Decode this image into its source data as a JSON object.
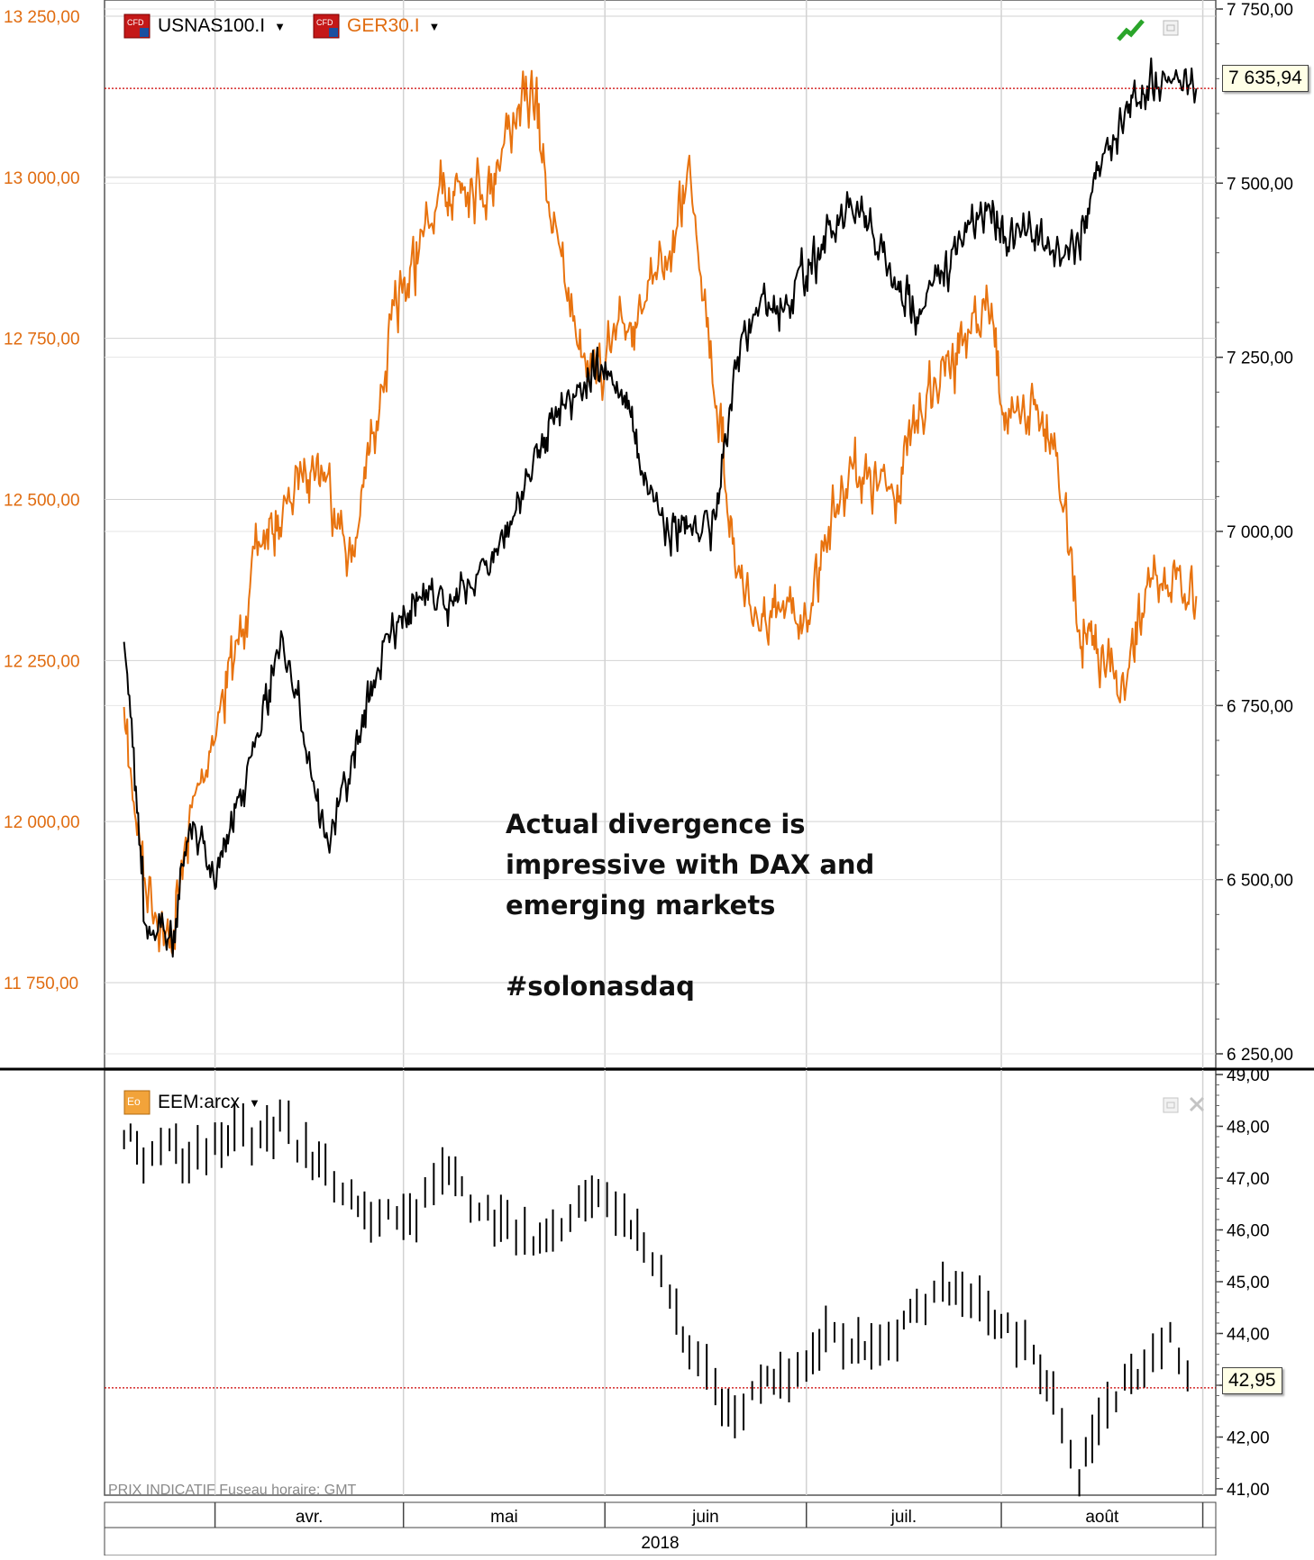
{
  "colors": {
    "left_axis": "#e06c10",
    "dax_line": "#e8730f",
    "nasdaq_line": "#000000",
    "ref_line": "#cc0000",
    "grid": "#d2d2d2"
  },
  "legend": {
    "top": [
      {
        "name": "USNAS100.I",
        "icon": "cfd-icon",
        "color": "#000000"
      },
      {
        "name": "GER30.I",
        "icon": "cfd-icon",
        "color": "#e06c10"
      }
    ],
    "bottom": {
      "name": "EEM:arcx",
      "icon": "etf-icon"
    }
  },
  "annotation": {
    "lines": [
      "Actual divergence is",
      "impressive with DAX and",
      "emerging markets"
    ],
    "hashtag": "#solonasdaq"
  },
  "footer": "PRIX INDICATIF   Fuseau horaire: GMT",
  "year_label": "2018",
  "last_values": {
    "usnas100": "7 635,94",
    "eem": "42,95"
  },
  "chart_data": [
    {
      "type": "line",
      "x_axis": "time",
      "months": [
        "avr.",
        "mai",
        "juin",
        "juil.",
        "août"
      ],
      "year": "2018",
      "left_axis": {
        "name": "GER30.I",
        "ticks": [
          "11 750,00",
          "12 000,00",
          "12 250,00",
          "12 500,00",
          "12 750,00",
          "13 000,00",
          "13 250,00"
        ]
      },
      "right_axis": {
        "name": "USNAS100.I",
        "ticks": [
          "6 250,00",
          "6 500,00",
          "6 750,00",
          "7 000,00",
          "7 250,00",
          "7 500,00",
          "7 750,00"
        ]
      },
      "series": [
        {
          "name": "GER30.I",
          "axis": "left",
          "color": "#e8730f",
          "x": [
            "2018-03-19",
            "2018-03-22",
            "2018-03-26",
            "2018-03-29",
            "2018-04-02",
            "2018-04-05",
            "2018-04-09",
            "2018-04-12",
            "2018-04-16",
            "2018-04-19",
            "2018-04-23",
            "2018-04-26",
            "2018-04-30",
            "2018-05-03",
            "2018-05-07",
            "2018-05-10",
            "2018-05-14",
            "2018-05-17",
            "2018-05-21",
            "2018-05-24",
            "2018-05-28",
            "2018-05-31",
            "2018-06-04",
            "2018-06-07",
            "2018-06-11",
            "2018-06-14",
            "2018-06-18",
            "2018-06-21",
            "2018-06-25",
            "2018-06-28",
            "2018-07-02",
            "2018-07-05",
            "2018-07-09",
            "2018-07-12",
            "2018-07-16",
            "2018-07-19",
            "2018-07-23",
            "2018-07-26",
            "2018-07-30",
            "2018-08-02",
            "2018-08-06",
            "2018-08-09",
            "2018-08-13",
            "2018-08-16",
            "2018-08-20",
            "2018-08-23",
            "2018-08-27",
            "2018-08-31"
          ],
          "values": [
            12150,
            11920,
            11800,
            12000,
            12150,
            12260,
            12440,
            12460,
            12560,
            12540,
            12400,
            12600,
            12800,
            12880,
            12970,
            13000,
            12980,
            13080,
            13130,
            12920,
            12750,
            12700,
            12770,
            12800,
            12880,
            13020,
            12660,
            12400,
            12300,
            12320,
            12320,
            12450,
            12560,
            12520,
            12520,
            12630,
            12700,
            12750,
            12800,
            12600,
            12650,
            12600,
            12300,
            12250,
            12200,
            12350,
            12380,
            12350
          ]
        },
        {
          "name": "USNAS100.I",
          "axis": "right",
          "color": "#000000",
          "x": [
            "2018-03-19",
            "2018-03-22",
            "2018-03-26",
            "2018-03-29",
            "2018-04-02",
            "2018-04-05",
            "2018-04-09",
            "2018-04-12",
            "2018-04-16",
            "2018-04-19",
            "2018-04-23",
            "2018-04-26",
            "2018-04-30",
            "2018-05-03",
            "2018-05-07",
            "2018-05-10",
            "2018-05-14",
            "2018-05-17",
            "2018-05-21",
            "2018-05-24",
            "2018-05-28",
            "2018-05-31",
            "2018-06-04",
            "2018-06-07",
            "2018-06-11",
            "2018-06-14",
            "2018-06-18",
            "2018-06-21",
            "2018-06-25",
            "2018-06-28",
            "2018-07-02",
            "2018-07-05",
            "2018-07-09",
            "2018-07-12",
            "2018-07-16",
            "2018-07-19",
            "2018-07-23",
            "2018-07-26",
            "2018-07-30",
            "2018-08-02",
            "2018-08-06",
            "2018-08-09",
            "2018-08-13",
            "2018-08-16",
            "2018-08-20",
            "2018-08-23",
            "2018-08-27",
            "2018-08-31"
          ],
          "values": [
            6850,
            6450,
            6400,
            6580,
            6500,
            6600,
            6720,
            6850,
            6700,
            6550,
            6660,
            6780,
            6880,
            6900,
            6900,
            6920,
            6950,
            7000,
            7100,
            7170,
            7210,
            7230,
            7200,
            7080,
            7000,
            7000,
            7020,
            7240,
            7330,
            7320,
            7380,
            7420,
            7460,
            7430,
            7340,
            7320,
            7370,
            7420,
            7470,
            7420,
            7430,
            7400,
            7420,
            7530,
            7600,
            7640,
            7660,
            7636
          ]
        }
      ]
    },
    {
      "type": "bar",
      "style": "ohlc",
      "x_axis": "time",
      "months": [
        "avr.",
        "mai",
        "juin",
        "juil.",
        "août"
      ],
      "right_axis": {
        "name": "EEM:arcx",
        "ticks": [
          "41,00",
          "42,00",
          "43,00",
          "44,00",
          "45,00",
          "46,00",
          "47,00",
          "48,00",
          "49,00"
        ]
      },
      "series": [
        {
          "name": "EEM:arcx",
          "color": "#000000",
          "x": [
            "2018-03-19",
            "2018-03-22",
            "2018-03-26",
            "2018-03-29",
            "2018-04-02",
            "2018-04-05",
            "2018-04-09",
            "2018-04-12",
            "2018-04-16",
            "2018-04-19",
            "2018-04-23",
            "2018-04-26",
            "2018-04-30",
            "2018-05-03",
            "2018-05-07",
            "2018-05-10",
            "2018-05-14",
            "2018-05-17",
            "2018-05-21",
            "2018-05-24",
            "2018-05-28",
            "2018-05-31",
            "2018-06-04",
            "2018-06-07",
            "2018-06-11",
            "2018-06-14",
            "2018-06-18",
            "2018-06-21",
            "2018-06-25",
            "2018-06-28",
            "2018-07-02",
            "2018-07-05",
            "2018-07-09",
            "2018-07-12",
            "2018-07-16",
            "2018-07-19",
            "2018-07-23",
            "2018-07-26",
            "2018-07-30",
            "2018-08-02",
            "2018-08-06",
            "2018-08-09",
            "2018-08-13",
            "2018-08-16",
            "2018-08-20",
            "2018-08-23",
            "2018-08-27",
            "2018-08-31"
          ],
          "values": [
            47.9,
            47.4,
            47.6,
            47.2,
            47.8,
            47.9,
            47.7,
            48.1,
            47.5,
            47.2,
            46.5,
            46.3,
            46.3,
            46.2,
            47.3,
            46.7,
            46.3,
            46.1,
            45.7,
            46.0,
            46.6,
            46.8,
            46.2,
            45.7,
            44.7,
            43.5,
            43.0,
            42.3,
            43.1,
            43.0,
            43.3,
            44.0,
            43.8,
            43.8,
            44.0,
            44.4,
            45.0,
            44.9,
            44.3,
            44.1,
            43.6,
            42.8,
            41.2,
            42.3,
            43.0,
            43.2,
            43.9,
            42.95
          ]
        }
      ]
    }
  ]
}
